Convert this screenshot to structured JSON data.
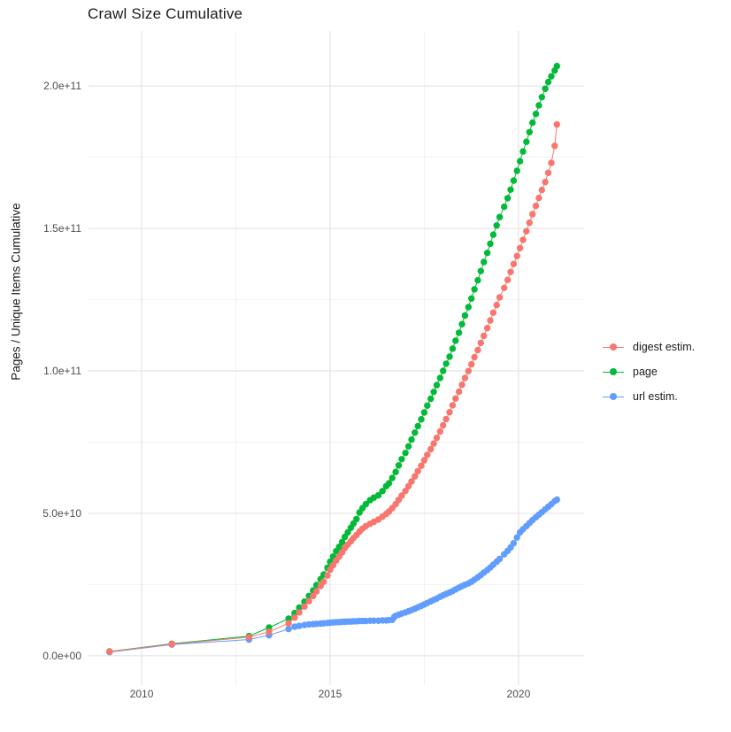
{
  "title": "Crawl Size Cumulative",
  "chart_data": {
    "type": "scatter",
    "title": "Crawl Size Cumulative",
    "xlabel": "",
    "ylabel": "Pages / Unique Items Cumulative",
    "grid": "on",
    "legend_position": "right",
    "xlim": [
      2008.59,
      2021.74
    ],
    "ylim_e9": [
      -10.3,
      219.3
    ],
    "x_ticks": [
      {
        "label": "2010",
        "year": 2010
      },
      {
        "label": "2015",
        "year": 2015
      },
      {
        "label": "2020",
        "year": 2020
      }
    ],
    "x_minor_years": [
      2012.5,
      2017.5
    ],
    "y_ticks": [
      {
        "label": "0.0e+00",
        "value_e9": 0
      },
      {
        "label": "5.0e+10",
        "value_e9": 50
      },
      {
        "label": "1.0e+11",
        "value_e9": 100
      },
      {
        "label": "1.5e+11",
        "value_e9": 150
      },
      {
        "label": "2.0e+11",
        "value_e9": 200
      }
    ],
    "y_minor_e9": [
      25,
      75,
      125,
      175
    ],
    "value_unit": "pages (values in billions, 1e9)",
    "legend": [
      {
        "label": "digest estim.",
        "color": "#F8766D"
      },
      {
        "label": "page",
        "color": "#00BA38"
      },
      {
        "label": "url estim.",
        "color": "#619CFF"
      }
    ],
    "series": [
      {
        "name": "digest estim.",
        "color": "#F8766D",
        "points": [
          [
            2009.15,
            1.4
          ],
          [
            2010.8,
            4.1
          ],
          [
            2012.85,
            6.5
          ],
          [
            2013.38,
            8.4
          ],
          [
            2013.9,
            11.4
          ],
          [
            2014.06,
            13.4
          ],
          [
            2014.18,
            15.2
          ],
          [
            2014.32,
            17.3
          ],
          [
            2014.44,
            19.2
          ],
          [
            2014.55,
            21.0
          ],
          [
            2014.64,
            22.6
          ],
          [
            2014.75,
            24.5
          ],
          [
            2014.83,
            26.0
          ],
          [
            2014.93,
            28.2
          ],
          [
            2015.0,
            30.2
          ],
          [
            2015.08,
            31.8
          ],
          [
            2015.16,
            33.4
          ],
          [
            2015.24,
            34.8
          ],
          [
            2015.32,
            36.3
          ],
          [
            2015.39,
            37.8
          ],
          [
            2015.47,
            39.0
          ],
          [
            2015.55,
            40.2
          ],
          [
            2015.62,
            41.3
          ],
          [
            2015.7,
            42.4
          ],
          [
            2015.78,
            43.6
          ],
          [
            2015.86,
            44.6
          ],
          [
            2015.95,
            45.5
          ],
          [
            2016.06,
            46.3
          ],
          [
            2016.16,
            47.0
          ],
          [
            2016.28,
            47.8
          ],
          [
            2016.39,
            48.8
          ],
          [
            2016.49,
            49.8
          ],
          [
            2016.56,
            50.6
          ],
          [
            2016.65,
            51.8
          ],
          [
            2016.74,
            53.2
          ],
          [
            2016.82,
            54.7
          ],
          [
            2016.9,
            56.2
          ],
          [
            2017.0,
            57.8
          ],
          [
            2017.08,
            59.5
          ],
          [
            2017.16,
            61.2
          ],
          [
            2017.25,
            63.0
          ],
          [
            2017.33,
            64.8
          ],
          [
            2017.42,
            66.7
          ],
          [
            2017.5,
            68.6
          ],
          [
            2017.58,
            70.5
          ],
          [
            2017.67,
            72.5
          ],
          [
            2017.75,
            74.5
          ],
          [
            2017.83,
            76.5
          ],
          [
            2017.92,
            78.7
          ],
          [
            2018.0,
            80.9
          ],
          [
            2018.08,
            83.1
          ],
          [
            2018.17,
            85.5
          ],
          [
            2018.25,
            87.9
          ],
          [
            2018.33,
            90.3
          ],
          [
            2018.42,
            92.7
          ],
          [
            2018.5,
            95.1
          ],
          [
            2018.58,
            97.5
          ],
          [
            2018.67,
            99.9
          ],
          [
            2018.75,
            102.3
          ],
          [
            2018.83,
            104.8
          ],
          [
            2018.92,
            107.3
          ],
          [
            2019.0,
            109.8
          ],
          [
            2019.08,
            112.3
          ],
          [
            2019.17,
            115.0
          ],
          [
            2019.25,
            117.7
          ],
          [
            2019.33,
            120.4
          ],
          [
            2019.42,
            123.1
          ],
          [
            2019.5,
            125.8
          ],
          [
            2019.62,
            129.1
          ],
          [
            2019.71,
            131.9
          ],
          [
            2019.79,
            134.7
          ],
          [
            2019.87,
            137.5
          ],
          [
            2019.96,
            140.3
          ],
          [
            2020.04,
            143.1
          ],
          [
            2020.12,
            146.0
          ],
          [
            2020.21,
            149.0
          ],
          [
            2020.29,
            152.0
          ],
          [
            2020.37,
            155.0
          ],
          [
            2020.46,
            157.9
          ],
          [
            2020.54,
            160.7
          ],
          [
            2020.62,
            163.5
          ],
          [
            2020.71,
            166.3
          ],
          [
            2020.79,
            169.5
          ],
          [
            2020.87,
            173.0
          ],
          [
            2020.96,
            179.0
          ],
          [
            2021.02,
            186.5
          ]
        ]
      },
      {
        "name": "page",
        "color": "#00BA38",
        "points": [
          [
            2009.15,
            1.5
          ],
          [
            2010.8,
            4.2
          ],
          [
            2012.85,
            6.9
          ],
          [
            2013.38,
            9.9
          ],
          [
            2013.9,
            13.0
          ],
          [
            2014.06,
            15.0
          ],
          [
            2014.18,
            16.9
          ],
          [
            2014.32,
            19.0
          ],
          [
            2014.44,
            21.0
          ],
          [
            2014.55,
            22.9
          ],
          [
            2014.64,
            24.8
          ],
          [
            2014.75,
            26.9
          ],
          [
            2014.83,
            28.5
          ],
          [
            2014.93,
            30.9
          ],
          [
            2015.0,
            33.0
          ],
          [
            2015.08,
            34.8
          ],
          [
            2015.16,
            36.7
          ],
          [
            2015.24,
            38.2
          ],
          [
            2015.32,
            39.9
          ],
          [
            2015.39,
            41.7
          ],
          [
            2015.47,
            43.3
          ],
          [
            2015.55,
            44.9
          ],
          [
            2015.62,
            46.4
          ],
          [
            2015.7,
            48.0
          ],
          [
            2015.78,
            50.3
          ],
          [
            2015.86,
            51.8
          ],
          [
            2015.95,
            53.2
          ],
          [
            2016.06,
            54.6
          ],
          [
            2016.16,
            55.5
          ],
          [
            2016.28,
            56.3
          ],
          [
            2016.39,
            57.8
          ],
          [
            2016.49,
            59.5
          ],
          [
            2016.56,
            60.5
          ],
          [
            2016.65,
            62.4
          ],
          [
            2016.74,
            64.5
          ],
          [
            2016.82,
            66.8
          ],
          [
            2016.9,
            69.0
          ],
          [
            2017.0,
            71.2
          ],
          [
            2017.08,
            73.5
          ],
          [
            2017.16,
            75.9
          ],
          [
            2017.25,
            78.3
          ],
          [
            2017.33,
            80.6
          ],
          [
            2017.42,
            83.0
          ],
          [
            2017.5,
            85.4
          ],
          [
            2017.58,
            87.8
          ],
          [
            2017.67,
            90.2
          ],
          [
            2017.75,
            92.6
          ],
          [
            2017.83,
            95.0
          ],
          [
            2017.92,
            97.5
          ],
          [
            2018.0,
            100.0
          ],
          [
            2018.08,
            102.5
          ],
          [
            2018.17,
            105.0
          ],
          [
            2018.25,
            107.8
          ],
          [
            2018.33,
            110.6
          ],
          [
            2018.42,
            113.4
          ],
          [
            2018.5,
            116.4
          ],
          [
            2018.58,
            119.4
          ],
          [
            2018.67,
            122.4
          ],
          [
            2018.75,
            125.4
          ],
          [
            2018.83,
            128.6
          ],
          [
            2018.92,
            131.8
          ],
          [
            2019.0,
            135.0
          ],
          [
            2019.08,
            138.2
          ],
          [
            2019.17,
            141.4
          ],
          [
            2019.25,
            144.6
          ],
          [
            2019.33,
            147.8
          ],
          [
            2019.42,
            151.0
          ],
          [
            2019.5,
            154.0
          ],
          [
            2019.62,
            157.6
          ],
          [
            2019.71,
            160.6
          ],
          [
            2019.79,
            163.6
          ],
          [
            2019.87,
            166.8
          ],
          [
            2019.96,
            170.2
          ],
          [
            2020.04,
            173.6
          ],
          [
            2020.12,
            177.0
          ],
          [
            2020.21,
            180.4
          ],
          [
            2020.29,
            183.8
          ],
          [
            2020.37,
            187.1
          ],
          [
            2020.46,
            190.2
          ],
          [
            2020.54,
            193.2
          ],
          [
            2020.62,
            196.1
          ],
          [
            2020.71,
            199.0
          ],
          [
            2020.79,
            201.4
          ],
          [
            2020.87,
            203.4
          ],
          [
            2020.96,
            205.4
          ],
          [
            2021.02,
            207.0
          ]
        ]
      },
      {
        "name": "url estim.",
        "color": "#619CFF",
        "points": [
          [
            2009.15,
            1.3
          ],
          [
            2010.8,
            3.9
          ],
          [
            2012.85,
            5.7
          ],
          [
            2013.38,
            7.2
          ],
          [
            2013.9,
            9.4
          ],
          [
            2014.06,
            10.2
          ],
          [
            2014.18,
            10.5
          ],
          [
            2014.32,
            10.8
          ],
          [
            2014.44,
            11.0
          ],
          [
            2014.55,
            11.1
          ],
          [
            2014.64,
            11.2
          ],
          [
            2014.75,
            11.3
          ],
          [
            2014.83,
            11.4
          ],
          [
            2014.93,
            11.5
          ],
          [
            2015.0,
            11.6
          ],
          [
            2015.08,
            11.7
          ],
          [
            2015.16,
            11.8
          ],
          [
            2015.24,
            11.8
          ],
          [
            2015.32,
            11.9
          ],
          [
            2015.39,
            11.9
          ],
          [
            2015.47,
            12.0
          ],
          [
            2015.55,
            12.0
          ],
          [
            2015.62,
            12.1
          ],
          [
            2015.7,
            12.1
          ],
          [
            2015.78,
            12.2
          ],
          [
            2015.86,
            12.2
          ],
          [
            2015.95,
            12.2
          ],
          [
            2016.06,
            12.3
          ],
          [
            2016.16,
            12.3
          ],
          [
            2016.28,
            12.3
          ],
          [
            2016.39,
            12.4
          ],
          [
            2016.49,
            12.4
          ],
          [
            2016.56,
            12.5
          ],
          [
            2016.65,
            12.6
          ],
          [
            2016.7,
            13.6
          ],
          [
            2016.74,
            14.0
          ],
          [
            2016.82,
            14.4
          ],
          [
            2016.9,
            14.8
          ],
          [
            2017.0,
            15.2
          ],
          [
            2017.08,
            15.6
          ],
          [
            2017.16,
            16.0
          ],
          [
            2017.25,
            16.5
          ],
          [
            2017.33,
            17.0
          ],
          [
            2017.42,
            17.5
          ],
          [
            2017.5,
            18.0
          ],
          [
            2017.58,
            18.5
          ],
          [
            2017.67,
            19.1
          ],
          [
            2017.75,
            19.6
          ],
          [
            2017.83,
            20.1
          ],
          [
            2017.92,
            20.7
          ],
          [
            2018.0,
            21.2
          ],
          [
            2018.08,
            21.7
          ],
          [
            2018.17,
            22.2
          ],
          [
            2018.25,
            22.7
          ],
          [
            2018.33,
            23.3
          ],
          [
            2018.42,
            23.9
          ],
          [
            2018.5,
            24.4
          ],
          [
            2018.58,
            24.9
          ],
          [
            2018.67,
            25.4
          ],
          [
            2018.75,
            26.0
          ],
          [
            2018.83,
            26.7
          ],
          [
            2018.92,
            27.5
          ],
          [
            2019.0,
            28.3
          ],
          [
            2019.08,
            29.2
          ],
          [
            2019.17,
            30.1
          ],
          [
            2019.25,
            31.0
          ],
          [
            2019.33,
            32.0
          ],
          [
            2019.42,
            33.0
          ],
          [
            2019.5,
            34.0
          ],
          [
            2019.62,
            35.6
          ],
          [
            2019.71,
            36.8
          ],
          [
            2019.79,
            38.0
          ],
          [
            2019.87,
            39.5
          ],
          [
            2019.96,
            41.5
          ],
          [
            2020.04,
            43.3
          ],
          [
            2020.12,
            44.4
          ],
          [
            2020.21,
            45.5
          ],
          [
            2020.29,
            46.6
          ],
          [
            2020.37,
            47.6
          ],
          [
            2020.46,
            48.6
          ],
          [
            2020.54,
            49.5
          ],
          [
            2020.62,
            50.4
          ],
          [
            2020.71,
            51.4
          ],
          [
            2020.79,
            52.3
          ],
          [
            2020.87,
            53.2
          ],
          [
            2020.96,
            54.3
          ],
          [
            2021.02,
            54.8
          ]
        ]
      }
    ],
    "style": {
      "grid_major_color": "#E4E4E4",
      "grid_minor_color": "#EFEFEF",
      "background": "#ffffff",
      "point_radius": 3.7,
      "z_order": [
        "page",
        "url estim.",
        "digest estim."
      ]
    }
  }
}
